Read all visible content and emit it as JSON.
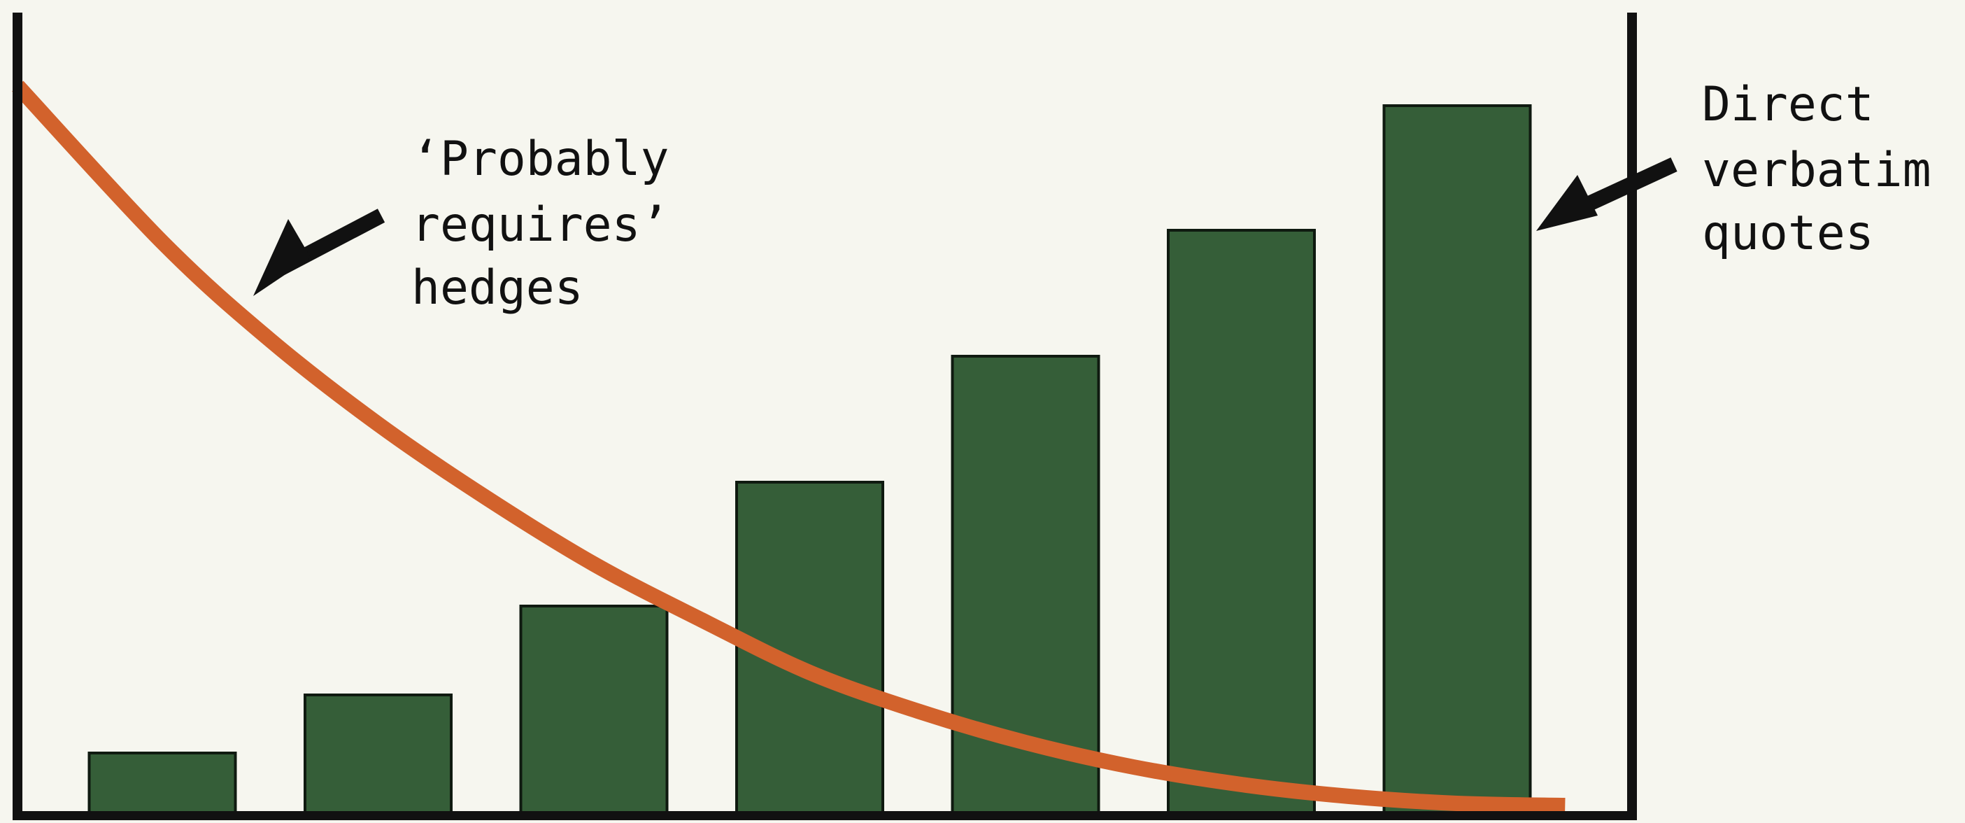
{
  "colors": {
    "background": "#f6f6ef",
    "bar_fill": "#355e38",
    "bar_stroke": "#0f1a10",
    "curve": "#d2622c",
    "axis": "#111111",
    "text": "#111111"
  },
  "chart_data": {
    "type": "bar",
    "title": "",
    "xlabel": "",
    "ylabel": "",
    "ylim": [
      0,
      100
    ],
    "grid": false,
    "legend": "none",
    "categories": [
      "",
      "",
      "",
      "",
      "",
      "",
      ""
    ],
    "series": [
      {
        "values": [
          9,
          17.3,
          30,
          47.7,
          65.7,
          83.7,
          101.5
        ]
      }
    ],
    "overlay_line": {
      "type": "line",
      "x": [
        -0.67,
        0.0,
        0.5,
        1.0,
        1.5,
        2.0,
        2.5,
        3.0,
        3.5,
        4.0,
        4.5,
        5.0,
        5.5,
        6.0,
        6.5
      ],
      "y": [
        104.3,
        82.0,
        68.0,
        56.0,
        45.5,
        36.0,
        28.0,
        20.5,
        15.0,
        10.5,
        7.0,
        4.5,
        2.8,
        1.8,
        1.5
      ]
    },
    "annotations": [
      {
        "id": "hedges",
        "lines": [
          "‘Probably",
          "requires’",
          "hedges"
        ],
        "points_to": "overlay_line"
      },
      {
        "id": "quotes",
        "lines": [
          "Direct",
          "verbatim",
          "quotes"
        ],
        "points_to": "last_bar"
      }
    ]
  }
}
